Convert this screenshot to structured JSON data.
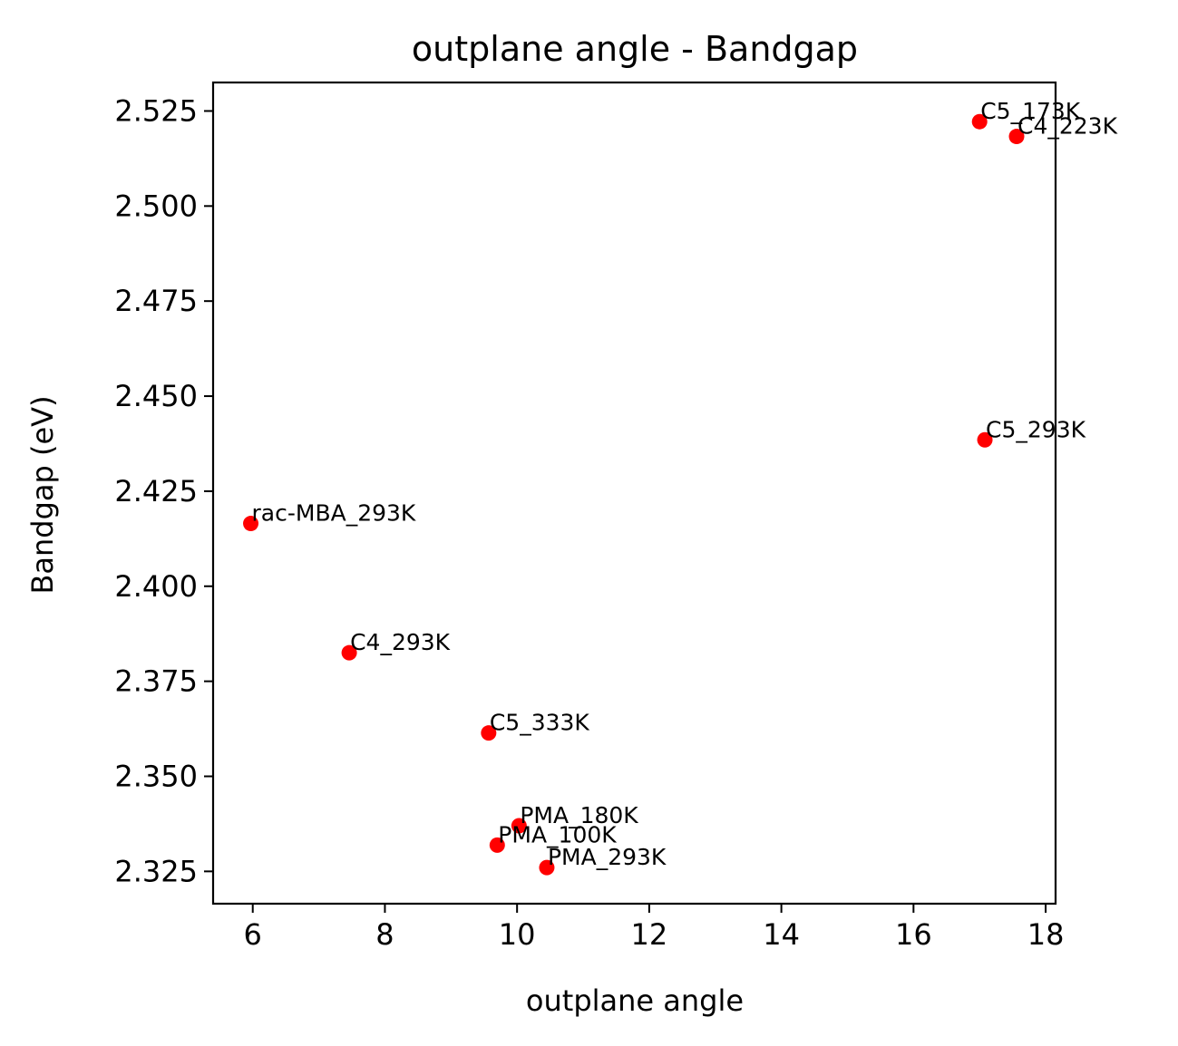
{
  "chart_data": {
    "type": "scatter",
    "title": "outplane angle - Bandgap",
    "xlabel": "outplane angle",
    "ylabel": "Bandgap (eV)",
    "xlim": [
      5.4,
      18.15
    ],
    "ylim": [
      2.3165,
      2.5325
    ],
    "xticks": [
      6,
      8,
      10,
      12,
      14,
      16,
      18
    ],
    "xtick_labels": [
      "6",
      "8",
      "10",
      "12",
      "14",
      "16",
      "18"
    ],
    "yticks": [
      2.325,
      2.35,
      2.375,
      2.4,
      2.425,
      2.45,
      2.475,
      2.5,
      2.525
    ],
    "ytick_labels": [
      "2.325",
      "2.350",
      "2.375",
      "2.400",
      "2.425",
      "2.450",
      "2.475",
      "2.500",
      "2.525"
    ],
    "grid": false,
    "marker_color": "#ff0000",
    "points": [
      {
        "label": "C5_173K",
        "x": 17.0,
        "y": 2.5222
      },
      {
        "label": "C4_223K",
        "x": 17.56,
        "y": 2.5183
      },
      {
        "label": "C5_293K",
        "x": 17.08,
        "y": 2.4385
      },
      {
        "label": "rac-MBA_293K",
        "x": 5.97,
        "y": 2.4165
      },
      {
        "label": "C4_293K",
        "x": 7.46,
        "y": 2.3825
      },
      {
        "label": "C5_333K",
        "x": 9.57,
        "y": 2.3614
      },
      {
        "label": "PMA_180K",
        "x": 10.03,
        "y": 2.337
      },
      {
        "label": "PMA_100K",
        "x": 9.7,
        "y": 2.3319
      },
      {
        "label": "PMA_293K",
        "x": 10.45,
        "y": 2.326
      }
    ]
  }
}
